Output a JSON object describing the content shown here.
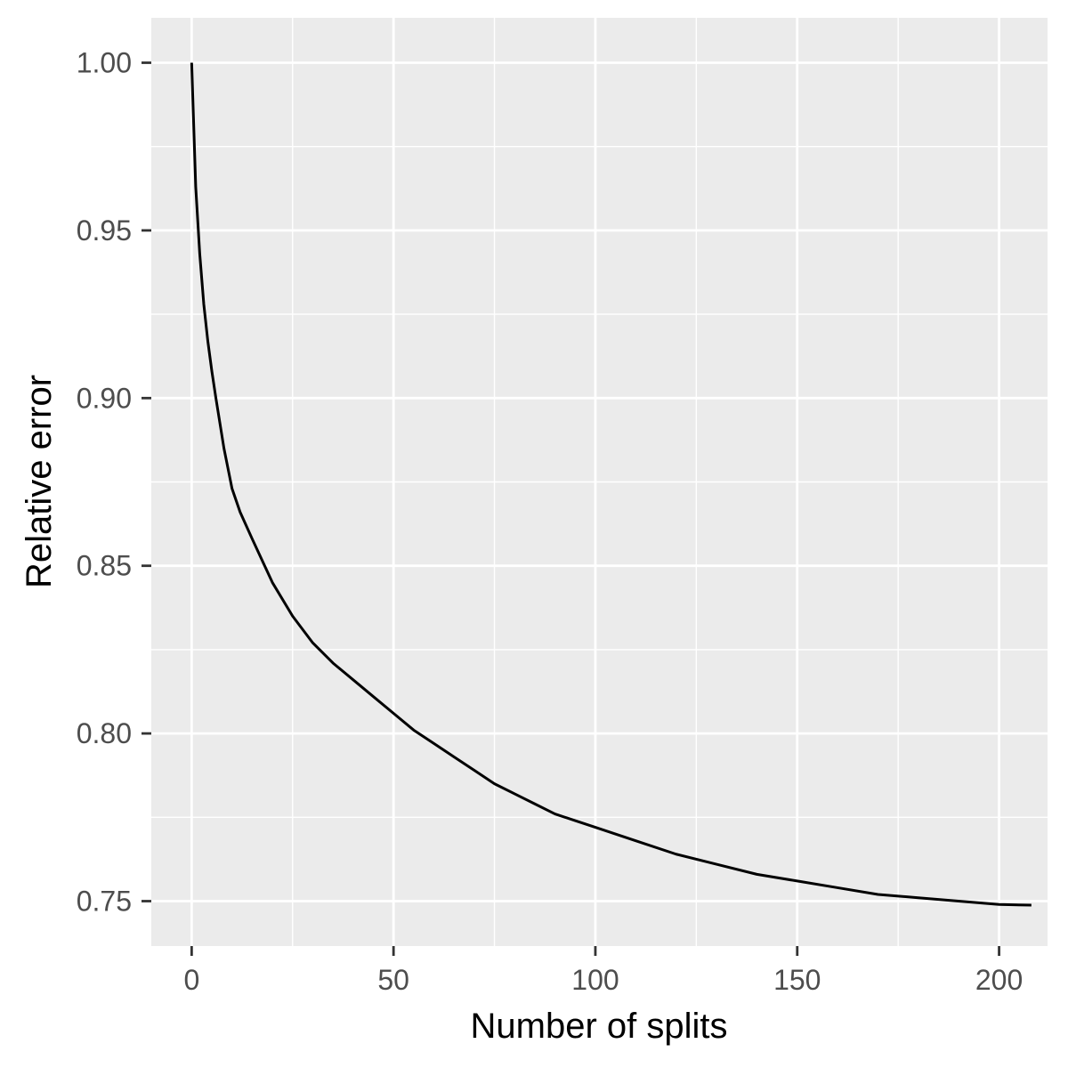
{
  "chart_data": {
    "type": "line",
    "title": "",
    "xlabel": "Number of splits",
    "ylabel": "Relative error",
    "xlim": [
      -10,
      212
    ],
    "ylim": [
      0.7366,
      1.0134
    ],
    "x_ticks": [
      0,
      50,
      100,
      150,
      200
    ],
    "x_tick_labels": [
      "0",
      "50",
      "100",
      "150",
      "200"
    ],
    "y_ticks": [
      0.75,
      0.8,
      0.85,
      0.9,
      0.95,
      1.0
    ],
    "y_tick_labels": [
      "0.75",
      "0.80",
      "0.85",
      "0.90",
      "0.95",
      "1.00"
    ],
    "x_minor_ticks": [
      25,
      75,
      125,
      175
    ],
    "y_minor_ticks": [
      0.775,
      0.825,
      0.875,
      0.925,
      0.975
    ],
    "grid": true,
    "legend": "none",
    "colors": {
      "panel_background": "#ebebeb",
      "grid_line": "#ffffff",
      "series_line": "#000000",
      "tick_mark": "#333333",
      "tick_label": "#4d4d4d"
    },
    "series": [
      {
        "x": [
          0,
          1,
          2,
          3,
          4,
          5,
          6,
          8,
          10,
          12,
          15,
          20,
          25,
          30,
          35,
          40,
          45,
          50,
          55,
          60,
          65,
          70,
          75,
          80,
          85,
          90,
          95,
          100,
          110,
          120,
          130,
          140,
          150,
          160,
          170,
          180,
          190,
          200,
          208
        ],
        "y": [
          1.0,
          0.963,
          0.943,
          0.928,
          0.917,
          0.908,
          0.9,
          0.885,
          0.873,
          0.866,
          0.858,
          0.845,
          0.835,
          0.827,
          0.821,
          0.816,
          0.811,
          0.806,
          0.801,
          0.797,
          0.793,
          0.789,
          0.785,
          0.782,
          0.779,
          0.776,
          0.774,
          0.772,
          0.768,
          0.764,
          0.761,
          0.758,
          0.756,
          0.754,
          0.752,
          0.751,
          0.75,
          0.749,
          0.7488
        ]
      }
    ]
  }
}
